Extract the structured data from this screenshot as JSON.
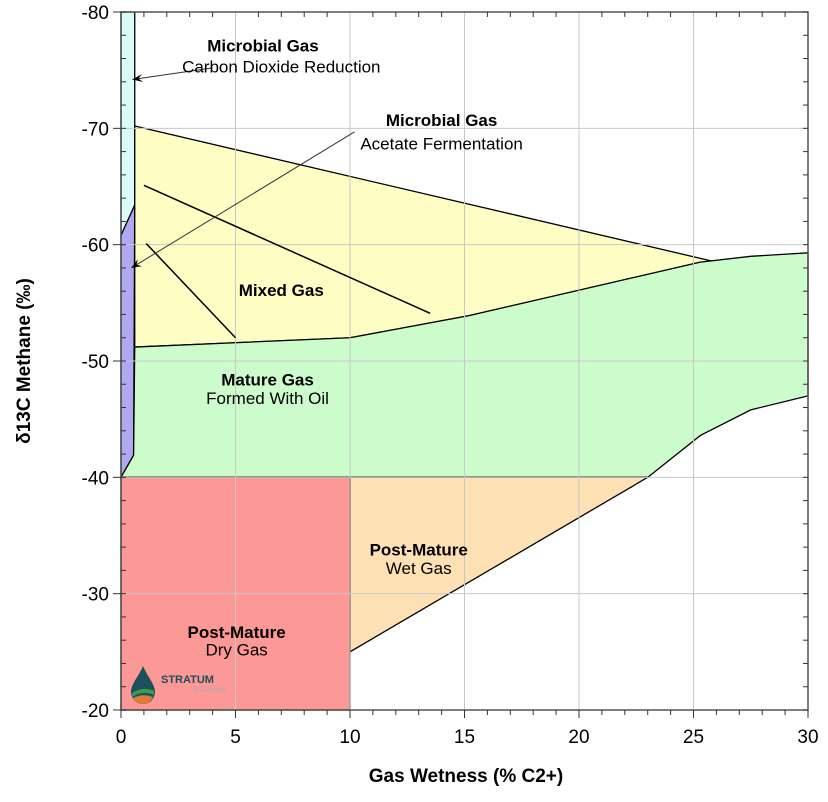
{
  "chart_data": {
    "type": "area",
    "title": "",
    "xlabel": "Gas Wetness (% C2+)",
    "ylabel": "δ13C Methane (‰)",
    "xlim": [
      0,
      30
    ],
    "ylim": [
      -80,
      -20
    ],
    "y_axis_inverted": true,
    "grid": true,
    "xticks": [
      0,
      5,
      10,
      15,
      20,
      25,
      30
    ],
    "xtick_labels": [
      "0",
      "5",
      "10",
      "15",
      "20",
      "25",
      "30"
    ],
    "yticks": [
      -80,
      -70,
      -60,
      -50,
      -40,
      -30,
      -20
    ],
    "ytick_labels": [
      "-80",
      "-70",
      "-60",
      "-50",
      "-40",
      "-30",
      "-20"
    ],
    "regions": [
      {
        "id": "co2-reduction",
        "color": "#dcfcfc",
        "points": [
          [
            0,
            -80
          ],
          [
            0.6,
            -80
          ],
          [
            0.6,
            -63.4
          ],
          [
            0,
            -60.8
          ]
        ]
      },
      {
        "id": "acetate-fermentation",
        "color": "#b0a8f0",
        "points": [
          [
            0,
            -60.8
          ],
          [
            0.6,
            -63.4
          ],
          [
            0.55,
            -41.9
          ],
          [
            0,
            -40
          ]
        ]
      },
      {
        "id": "mixed-gas",
        "color": "#fdfdc4",
        "points": [
          [
            0.6,
            -70.2
          ],
          [
            26,
            -58.5
          ],
          [
            25.3,
            -58.5
          ],
          [
            15.2,
            -53.9
          ],
          [
            10,
            -52
          ],
          [
            0.6,
            -51.2
          ]
        ]
      },
      {
        "id": "mature-gas",
        "color": "#ccfccc",
        "points": [
          [
            0.6,
            -51.2
          ],
          [
            10,
            -52
          ],
          [
            15.2,
            -53.9
          ],
          [
            25.3,
            -58.5
          ],
          [
            27.5,
            -59
          ],
          [
            30,
            -59.3
          ],
          [
            30,
            -47
          ],
          [
            27.5,
            -45.8
          ],
          [
            25.3,
            -43.6
          ],
          [
            23,
            -40
          ],
          [
            0,
            -40
          ],
          [
            0.55,
            -41.9
          ]
        ]
      },
      {
        "id": "post-mature-wet-gas",
        "color": "#fde0b4",
        "points": [
          [
            10,
            -40
          ],
          [
            23,
            -40
          ],
          [
            10,
            -25
          ]
        ]
      },
      {
        "id": "post-mature-dry-gas",
        "color": "#fc9896",
        "points": [
          [
            0,
            -40
          ],
          [
            10,
            -40
          ],
          [
            10,
            -20
          ],
          [
            0,
            -20
          ]
        ]
      }
    ],
    "lines": [
      {
        "id": "mixing-line-1",
        "points": [
          [
            1,
            -65.1
          ],
          [
            13.5,
            -54.1
          ]
        ]
      },
      {
        "id": "mixing-line-2",
        "points": [
          [
            1.1,
            -60.1
          ],
          [
            5,
            -52
          ]
        ]
      }
    ],
    "arrows": [
      {
        "id": "co2-arrow",
        "from": [
          4.0,
          -75.2
        ],
        "to": [
          0.5,
          -74.2
        ]
      },
      {
        "id": "acetate-arrow",
        "from": [
          10.2,
          -69.7
        ],
        "to": [
          0.45,
          -58
        ]
      }
    ],
    "annotations": [
      {
        "title": "Microbial Gas",
        "subtitle": "Carbon Dioxide Reduction",
        "at": [
          6.2,
          -76.6
        ],
        "sub_at": [
          7,
          -74.8
        ]
      },
      {
        "title": "Microbial Gas",
        "subtitle": "Acetate Fermentation",
        "at": [
          14,
          -70.2
        ],
        "sub_at": [
          14,
          -68.2
        ]
      },
      {
        "title": "Mixed Gas",
        "subtitle": "",
        "at": [
          7,
          -55.6
        ],
        "sub_at": [
          7,
          -55.6
        ]
      },
      {
        "title": "Mature Gas",
        "subtitle": "Formed With Oil",
        "at": [
          6.4,
          -47.9
        ],
        "sub_at": [
          6.4,
          -46.3
        ]
      },
      {
        "title": "Post-Mature",
        "subtitle": "Wet Gas",
        "at": [
          13,
          -33.3
        ],
        "sub_at": [
          13,
          -31.7
        ]
      },
      {
        "title": "Post-Mature",
        "subtitle": "Dry Gas",
        "at": [
          5.05,
          -26.2
        ],
        "sub_at": [
          5.05,
          -24.7
        ]
      }
    ]
  },
  "logo": {
    "name": "STRATUM",
    "tagline": "RESERVOIR",
    "colors": [
      "#1d4f5c",
      "#3a9b4a",
      "#e07a3a"
    ]
  }
}
